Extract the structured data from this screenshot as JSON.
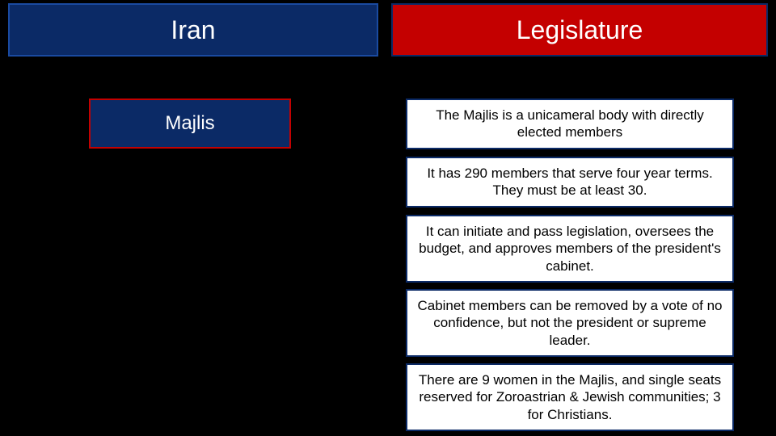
{
  "colors": {
    "background": "#000000",
    "navy": "#0b2a66",
    "navy_border": "#1a4aa0",
    "red": "#c40000",
    "white": "#ffffff",
    "black_text": "#000000"
  },
  "header": {
    "left_title": "Iran",
    "left_bg": "#0b2a66",
    "left_border": "#1a4aa0",
    "left_text_color": "#ffffff",
    "left_fontsize": 32,
    "right_title": "Legislature",
    "right_bg": "#c40000",
    "right_border": "#0b2a66",
    "right_text_color": "#ffffff",
    "right_fontsize": 32
  },
  "sidebar": {
    "majlis_label": "Majlis",
    "majlis_bg": "#0b2a66",
    "majlis_border": "#c40000",
    "majlis_text_color": "#ffffff",
    "majlis_fontsize": 24
  },
  "facts": {
    "box_bg": "#ffffff",
    "box_border": "#0b2a66",
    "box_text_color": "#000000",
    "box_fontsize": 17,
    "items": [
      "The Majlis is a unicameral body with directly elected members",
      "It has 290 members that serve four year terms.  They must be at least 30.",
      "It can initiate and pass legislation, oversees the budget, and approves members of the president's cabinet.",
      "Cabinet members can be removed by a vote of no confidence, but not the president or supreme leader.",
      "There are 9 women in the Majlis, and single seats reserved for Zoroastrian & Jewish communities; 3 for Christians."
    ]
  },
  "layout": {
    "slide_width": 960,
    "slide_height": 540
  }
}
